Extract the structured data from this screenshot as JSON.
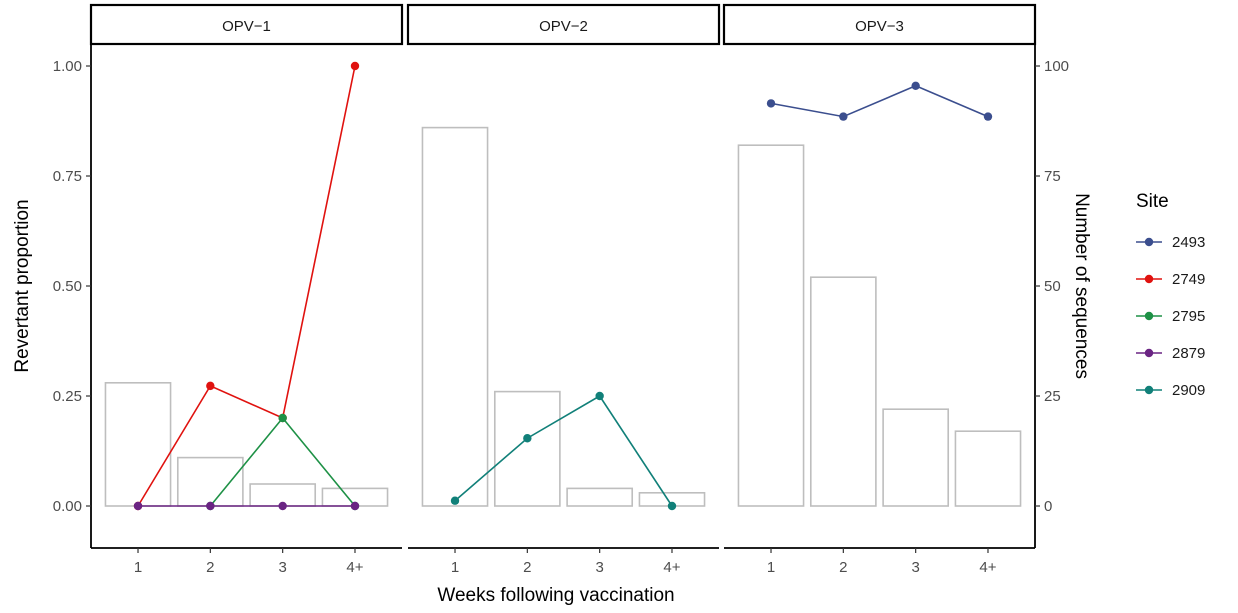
{
  "chart_data": {
    "type": "line",
    "overlay_type": "bar",
    "facets": [
      "OPV−1",
      "OPV−2",
      "OPV−3"
    ],
    "categories": [
      "1",
      "2",
      "3",
      "4+"
    ],
    "xlabel": "Weeks following vaccination",
    "ylabel": "Revertant proportion",
    "y2label": "Number of sequences",
    "ylim": [
      -0.1,
      1.1
    ],
    "y2lim": [
      -10,
      110
    ],
    "yticks": [
      "0.00",
      "0.25",
      "0.50",
      "0.75",
      "1.00"
    ],
    "y2ticks": [
      "0",
      "25",
      "50",
      "75",
      "100"
    ],
    "legend": {
      "title": "Site",
      "position": "right",
      "entries": [
        {
          "name": "2493",
          "color": "#3B4E8E"
        },
        {
          "name": "2749",
          "color": "#E0120F"
        },
        {
          "name": "2795",
          "color": "#1E9146"
        },
        {
          "name": "2879",
          "color": "#6A2483"
        },
        {
          "name": "2909",
          "color": "#118079"
        }
      ]
    },
    "bars": [
      {
        "facet": "OPV−1",
        "values": [
          28,
          11,
          5,
          4
        ]
      },
      {
        "facet": "OPV−2",
        "values": [
          86,
          26,
          4,
          3
        ]
      },
      {
        "facet": "OPV−3",
        "values": [
          82,
          52,
          22,
          17
        ]
      }
    ],
    "series": [
      {
        "facet": "OPV−1",
        "name": "2749",
        "color": "#E0120F",
        "x": [
          "1",
          "2",
          "3",
          "4+"
        ],
        "values": [
          0.0,
          0.273,
          0.2,
          1.0
        ]
      },
      {
        "facet": "OPV−1",
        "name": "2795",
        "color": "#1E9146",
        "x": [
          "2",
          "3",
          "4+"
        ],
        "values": [
          0.0,
          0.2,
          0.0
        ]
      },
      {
        "facet": "OPV−1",
        "name": "2879",
        "color": "#6A2483",
        "x": [
          "1",
          "2",
          "3",
          "4+"
        ],
        "values": [
          0.0,
          0.0,
          0.0,
          0.0
        ]
      },
      {
        "facet": "OPV−2",
        "name": "2909",
        "color": "#118079",
        "x": [
          "1",
          "2",
          "3",
          "4+"
        ],
        "values": [
          0.012,
          0.154,
          0.25,
          0.0
        ]
      },
      {
        "facet": "OPV−3",
        "name": "2493",
        "color": "#3B4E8E",
        "x": [
          "1",
          "2",
          "3",
          "4+"
        ],
        "values": [
          0.915,
          0.885,
          0.955,
          0.885
        ]
      }
    ],
    "bar_stroke_color": "#BEBEBE",
    "grid": false
  }
}
